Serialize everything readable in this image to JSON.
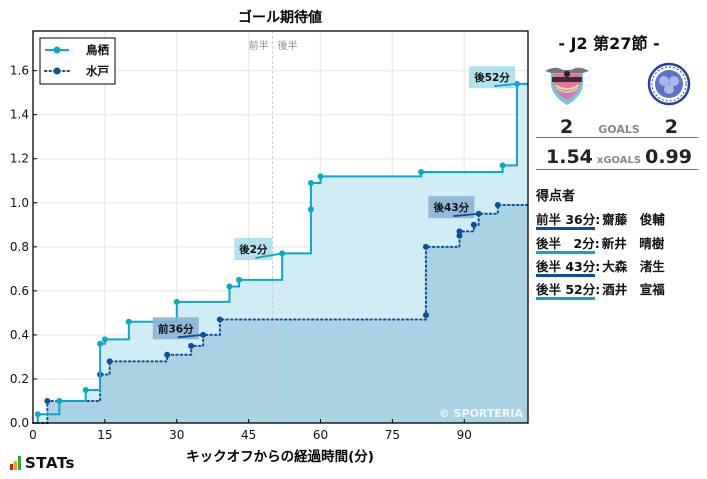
{
  "chart_data": {
    "type": "line",
    "subtype": "step-cumulative-area",
    "title": "ゴール期待値",
    "xlabel": "キックオフからの経過時間(分)",
    "ylabel": "",
    "xlim": [
      0,
      103.3
    ],
    "ylim": [
      0,
      1.78
    ],
    "xticks": [
      0,
      15,
      30,
      45,
      60,
      75,
      90
    ],
    "yticks": [
      0.0,
      0.2,
      0.4,
      0.6,
      0.8,
      1.0,
      1.2,
      1.4,
      1.6
    ],
    "grid": true,
    "legend_position": "upper left",
    "half_marker": {
      "x": 50,
      "labels": [
        "前半",
        "後半"
      ]
    },
    "watermark": "© SPORTERIA",
    "series": [
      {
        "name": "鳥栖",
        "color": "#0aa8c8",
        "fill": "#cbeaf4",
        "line_style": "solid",
        "points": [
          [
            0,
            0
          ],
          [
            1,
            0.04
          ],
          [
            5.5,
            0.1
          ],
          [
            11,
            0.15
          ],
          [
            14,
            0.36
          ],
          [
            15,
            0.38
          ],
          [
            20,
            0.46
          ],
          [
            30,
            0.55
          ],
          [
            41,
            0.62
          ],
          [
            43,
            0.65
          ],
          [
            52,
            0.77
          ],
          [
            58,
            0.97
          ],
          [
            58,
            1.09
          ],
          [
            60,
            1.12
          ],
          [
            81,
            1.14
          ],
          [
            98,
            1.17
          ],
          [
            101,
            1.54
          ]
        ],
        "end_x": 103.3
      },
      {
        "name": "水戸",
        "color": "#0b4f9c",
        "fill": "#a3d0e3",
        "line_style": "dotted",
        "points": [
          [
            0,
            0
          ],
          [
            3,
            0.1
          ],
          [
            14,
            0.22
          ],
          [
            16,
            0.28
          ],
          [
            28,
            0.31
          ],
          [
            33,
            0.35
          ],
          [
            35.5,
            0.4
          ],
          [
            39,
            0.47
          ],
          [
            82,
            0.49
          ],
          [
            82,
            0.8
          ],
          [
            89,
            0.85
          ],
          [
            89,
            0.87
          ],
          [
            92,
            0.9
          ],
          [
            93,
            0.95
          ],
          [
            97,
            0.99
          ]
        ],
        "end_x": 103.3
      }
    ],
    "annotations": [
      {
        "text": "前36分",
        "team": "水戸",
        "x": 35.5,
        "y": 0.4,
        "box_x": 25,
        "box_y": 0.48,
        "box_color": "#8ab4d6"
      },
      {
        "text": "後2分",
        "team": "鳥栖",
        "x": 52,
        "y": 0.77,
        "box_x": 42,
        "box_y": 0.84,
        "box_color": "#a9dfeb"
      },
      {
        "text": "後43分",
        "team": "水戸",
        "x": 93,
        "y": 0.95,
        "box_x": 82.5,
        "box_y": 1.03,
        "box_color": "#8ab4d6"
      },
      {
        "text": "後52分",
        "team": "鳥栖",
        "x": 101,
        "y": 1.54,
        "box_x": 91,
        "box_y": 1.62,
        "box_color": "#a9dfeb"
      }
    ]
  },
  "sidebar": {
    "round": "-  J2 第27節  -",
    "home_team": "鳥栖",
    "away_team": "水戸",
    "goals": {
      "home": "2",
      "label": "GOALS",
      "away": "2"
    },
    "xgoals": {
      "home": "1.54",
      "label": "xGOALS",
      "away": "0.99"
    },
    "scorers_title": "得点者",
    "scorers": [
      {
        "time": "前半 36分",
        "name": "齋藤　俊輔",
        "color": "#0b4f9c"
      },
      {
        "time": "後半　2分",
        "name": "新井　晴樹",
        "color": "#0aa8c8"
      },
      {
        "time": "後半 43分",
        "name": "大森　渚生",
        "color": "#0b4f9c"
      },
      {
        "time": "後半 52分",
        "name": "酒井　宣福",
        "color": "#0aa8c8"
      }
    ]
  },
  "footer": {
    "brand": "STATs"
  }
}
